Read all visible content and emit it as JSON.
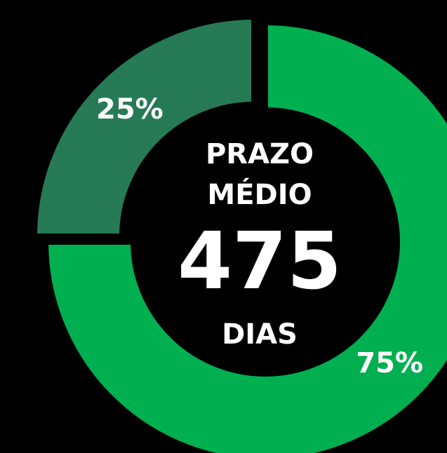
{
  "chart_data": {
    "type": "pie",
    "donut": true,
    "values": [
      75,
      25
    ],
    "value_labels": [
      "75%",
      "25%"
    ],
    "colors": [
      "#00b050",
      "#267a56"
    ],
    "annotations": [
      "PRAZO",
      "MÉDIO",
      "475",
      "DIAS"
    ]
  }
}
